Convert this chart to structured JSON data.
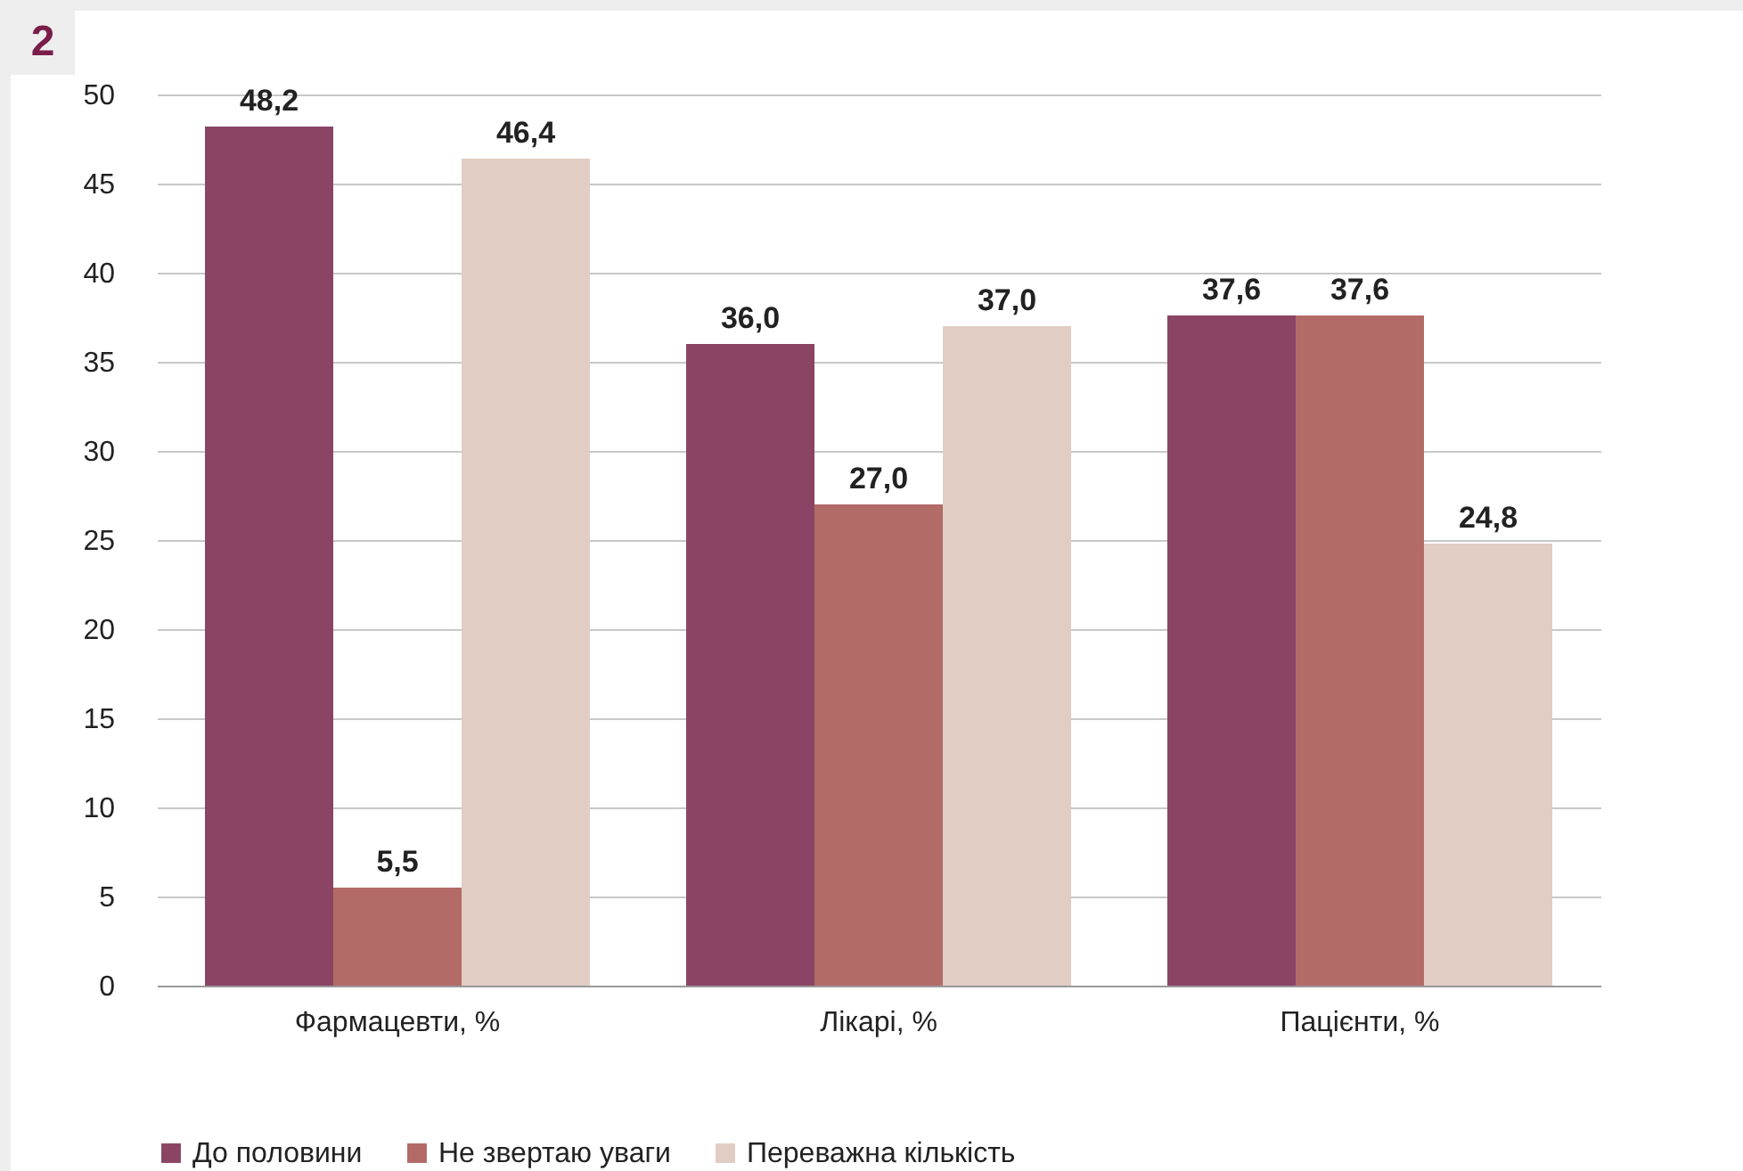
{
  "chart_data": {
    "type": "bar",
    "annotations": [
      "2"
    ],
    "categories": [
      "Фармацевти, %",
      "Лікарі, %",
      "Пацієнти, %"
    ],
    "series": [
      {
        "name": "До половини",
        "color": "#8b4463",
        "values": [
          48.2,
          36.0,
          37.6
        ],
        "value_labels": [
          "48,2",
          "36,0",
          "37,6"
        ]
      },
      {
        "name": "Не звертаю уваги",
        "color": "#b36b68",
        "values": [
          5.5,
          27.0,
          37.6
        ],
        "value_labels": [
          "5,5",
          "27,0",
          "37,6"
        ]
      },
      {
        "name": "Переважна кількість",
        "color": "#e2cdc4",
        "values": [
          46.4,
          37.0,
          24.8
        ],
        "value_labels": [
          "46,4",
          "37,0",
          "24,8"
        ]
      }
    ],
    "ylim": [
      0,
      50
    ],
    "yticks": [
      0,
      5,
      10,
      15,
      20,
      25,
      30,
      35,
      40,
      45,
      50
    ],
    "grid": "y",
    "legend": "bottom"
  }
}
